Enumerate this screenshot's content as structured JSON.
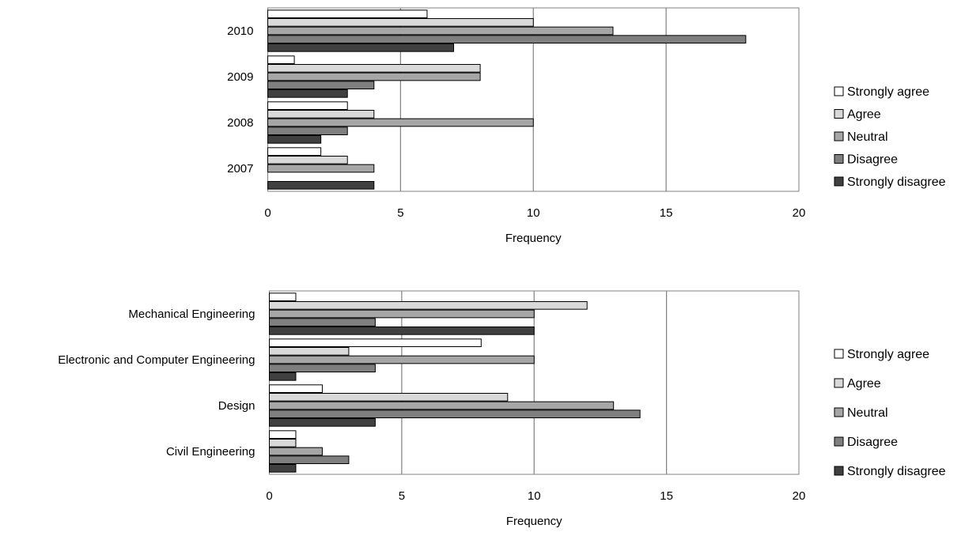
{
  "legend_entries": [
    "Strongly agree",
    "Agree",
    "Neutral",
    "Disagree",
    "Strongly disagree"
  ],
  "colors": {
    "strongly_agree": "#ffffff",
    "agree": "#d9d9d9",
    "neutral": "#a6a6a6",
    "disagree": "#7f7f7f",
    "strongly_disagree": "#404040",
    "gridline": "#808080",
    "bar_stroke": "#000000"
  },
  "chart_data": [
    {
      "type": "bar",
      "orientation": "horizontal",
      "title": "",
      "xlabel": "Frequency",
      "ylabel": "",
      "xlim": [
        0,
        20
      ],
      "xticks": [
        0,
        5,
        10,
        15,
        20
      ],
      "grid": true,
      "legend_position": "right",
      "categories": [
        "2010",
        "2009",
        "2008",
        "2007"
      ],
      "series": [
        {
          "name": "Strongly agree",
          "values": [
            6,
            1,
            3,
            2
          ]
        },
        {
          "name": "Agree",
          "values": [
            10,
            8,
            4,
            3
          ]
        },
        {
          "name": "Neutral",
          "values": [
            13,
            8,
            10,
            4
          ]
        },
        {
          "name": "Disagree",
          "values": [
            18,
            4,
            3,
            0
          ]
        },
        {
          "name": "Strongly disagree",
          "values": [
            7,
            3,
            2,
            4
          ]
        }
      ]
    },
    {
      "type": "bar",
      "orientation": "horizontal",
      "title": "",
      "xlabel": "Frequency",
      "ylabel": "",
      "xlim": [
        0,
        20
      ],
      "xticks": [
        0,
        5,
        10,
        15,
        20
      ],
      "grid": true,
      "legend_position": "right",
      "categories": [
        "Mechanical Engineering",
        "Electronic and Computer Engineering",
        "Design",
        "Civil Engineering"
      ],
      "series": [
        {
          "name": "Strongly agree",
          "values": [
            1,
            8,
            2,
            1
          ]
        },
        {
          "name": "Agree",
          "values": [
            12,
            3,
            9,
            1
          ]
        },
        {
          "name": "Neutral",
          "values": [
            10,
            10,
            13,
            2
          ]
        },
        {
          "name": "Disagree",
          "values": [
            4,
            4,
            14,
            3
          ]
        },
        {
          "name": "Strongly disagree",
          "values": [
            10,
            1,
            4,
            1
          ]
        }
      ]
    }
  ]
}
